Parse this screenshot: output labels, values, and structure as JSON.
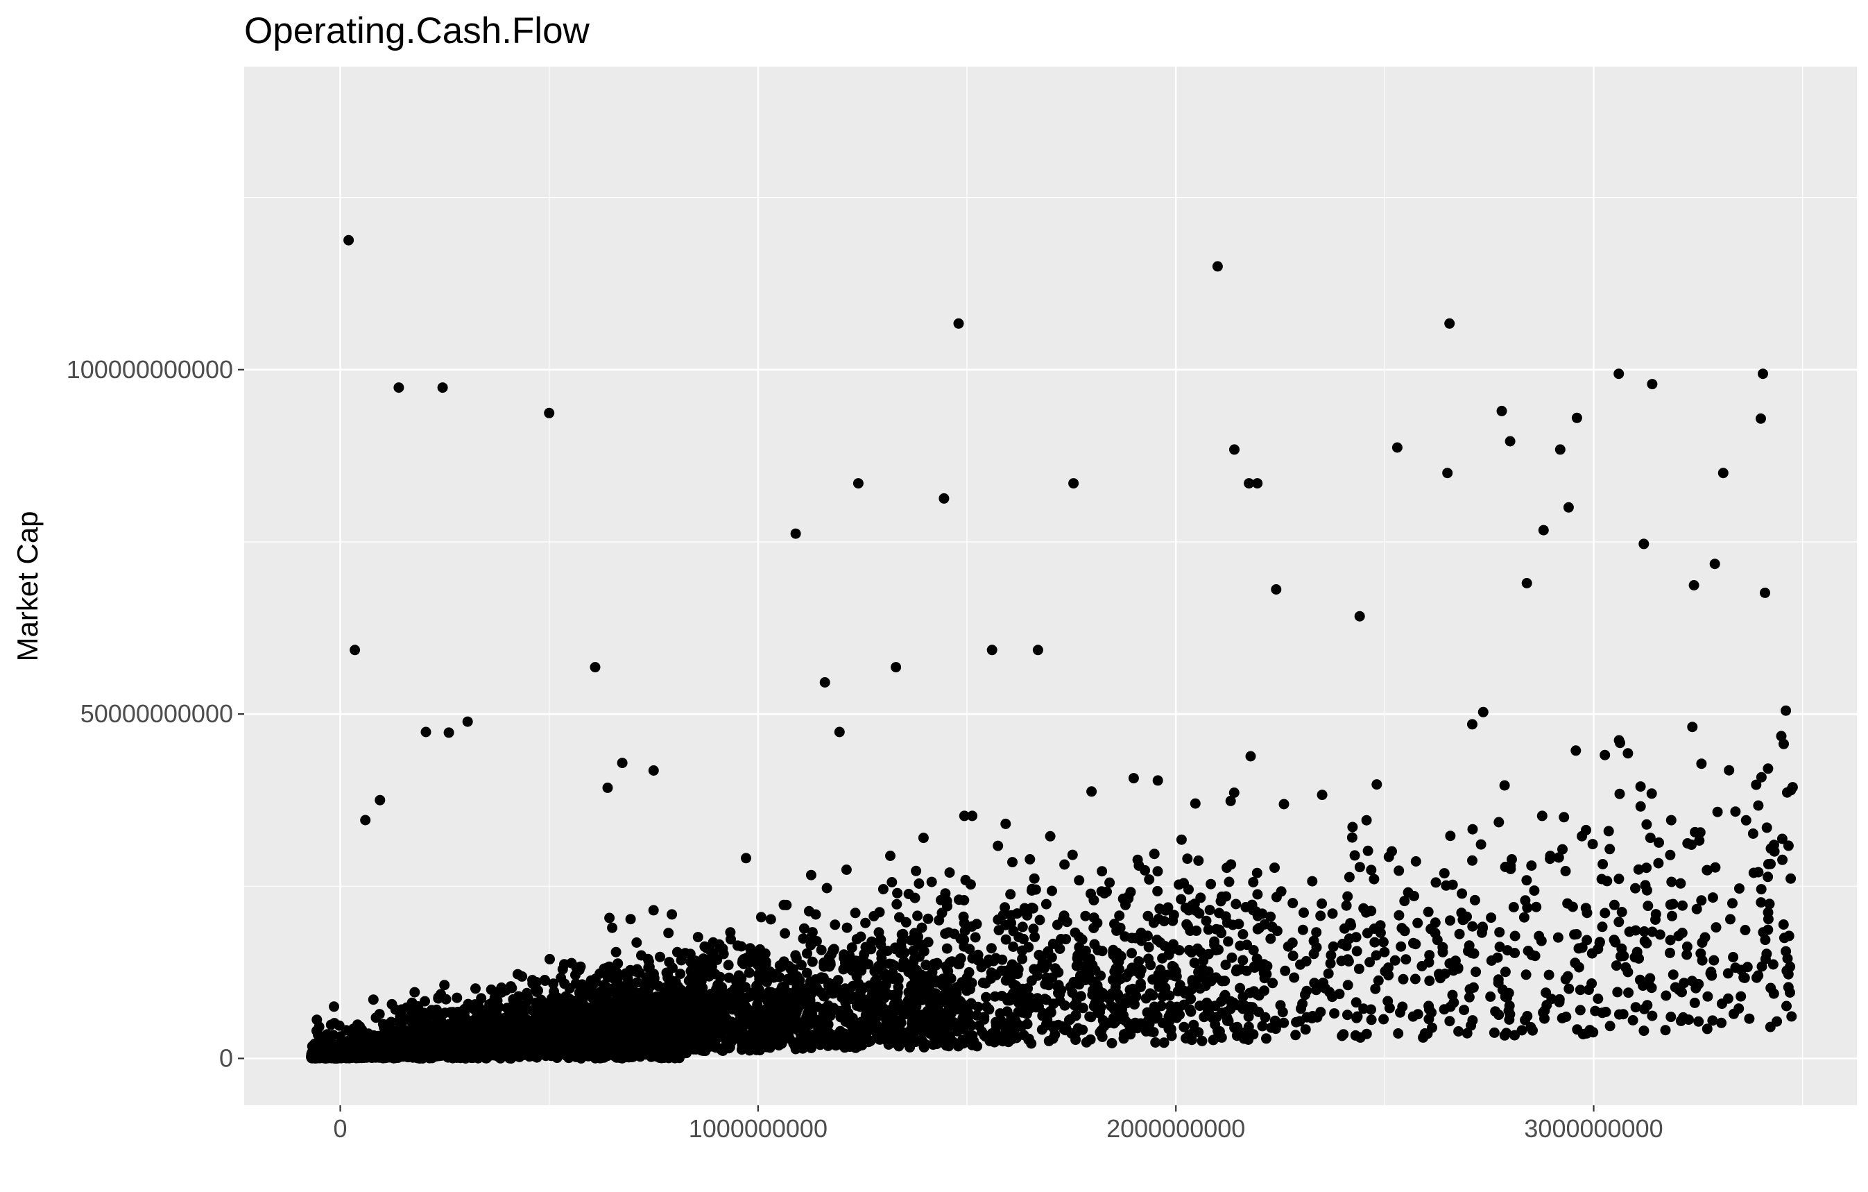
{
  "chart_data": {
    "type": "scatter",
    "title": "Operating.Cash.Flow",
    "xlabel": "",
    "ylabel": "Market Cap",
    "xlim": [
      -230000000,
      3630000000
    ],
    "ylim": [
      -6800000000,
      144000000000
    ],
    "x_ticks": [
      0,
      1000000000,
      2000000000,
      3000000000
    ],
    "x_tick_labels": [
      "0",
      "1000000000",
      "2000000000",
      "3000000000"
    ],
    "y_ticks": [
      0,
      50000000000,
      100000000000
    ],
    "y_tick_labels": [
      "0",
      "50000000000",
      "100000000000"
    ],
    "grid": true,
    "legend": "none",
    "colors": {
      "panel": "#ebebeb",
      "grid": "#ffffff",
      "point": "#000000"
    },
    "outliers": [
      [
        20000000,
        118800000000
      ],
      [
        35000000,
        59300000000
      ],
      [
        60000000,
        34600000000
      ],
      [
        95000000,
        37500000000
      ],
      [
        140000000,
        97400000000
      ],
      [
        205000000,
        47400000000
      ],
      [
        260000000,
        47300000000
      ],
      [
        305000000,
        48900000000
      ],
      [
        245000000,
        97400000000
      ],
      [
        500000000,
        93700000000
      ],
      [
        610000000,
        56800000000
      ],
      [
        640000000,
        39300000000
      ],
      [
        675000000,
        42900000000
      ],
      [
        750000000,
        41800000000
      ],
      [
        1090000000,
        76200000000
      ],
      [
        1160000000,
        54600000000
      ],
      [
        1195000000,
        47400000000
      ],
      [
        1240000000,
        83500000000
      ],
      [
        1330000000,
        56800000000
      ],
      [
        1445000000,
        81300000000
      ],
      [
        1480000000,
        106700000000
      ],
      [
        1560000000,
        59300000000
      ],
      [
        1670000000,
        59300000000
      ],
      [
        1755000000,
        83500000000
      ],
      [
        2100000000,
        115000000000
      ],
      [
        2140000000,
        88400000000
      ],
      [
        2175000000,
        83500000000
      ],
      [
        2195000000,
        83500000000
      ],
      [
        2240000000,
        68100000000
      ],
      [
        2440000000,
        64200000000
      ],
      [
        2530000000,
        88700000000
      ],
      [
        2650000000,
        85000000000
      ],
      [
        2655000000,
        106700000000
      ],
      [
        2780000000,
        94000000000
      ],
      [
        2800000000,
        89600000000
      ],
      [
        2840000000,
        69000000000
      ],
      [
        2880000000,
        76700000000
      ],
      [
        2920000000,
        88400000000
      ],
      [
        2940000000,
        80000000000
      ],
      [
        2960000000,
        93000000000
      ],
      [
        3060000000,
        99400000000
      ],
      [
        3120000000,
        74700000000
      ],
      [
        3140000000,
        97900000000
      ],
      [
        3240000000,
        68700000000
      ],
      [
        3290000000,
        71800000000
      ],
      [
        3310000000,
        85000000000
      ],
      [
        3400000000,
        92900000000
      ],
      [
        3405000000,
        99400000000
      ],
      [
        3410000000,
        67600000000
      ],
      [
        3460000000,
        50500000000
      ]
    ]
  }
}
